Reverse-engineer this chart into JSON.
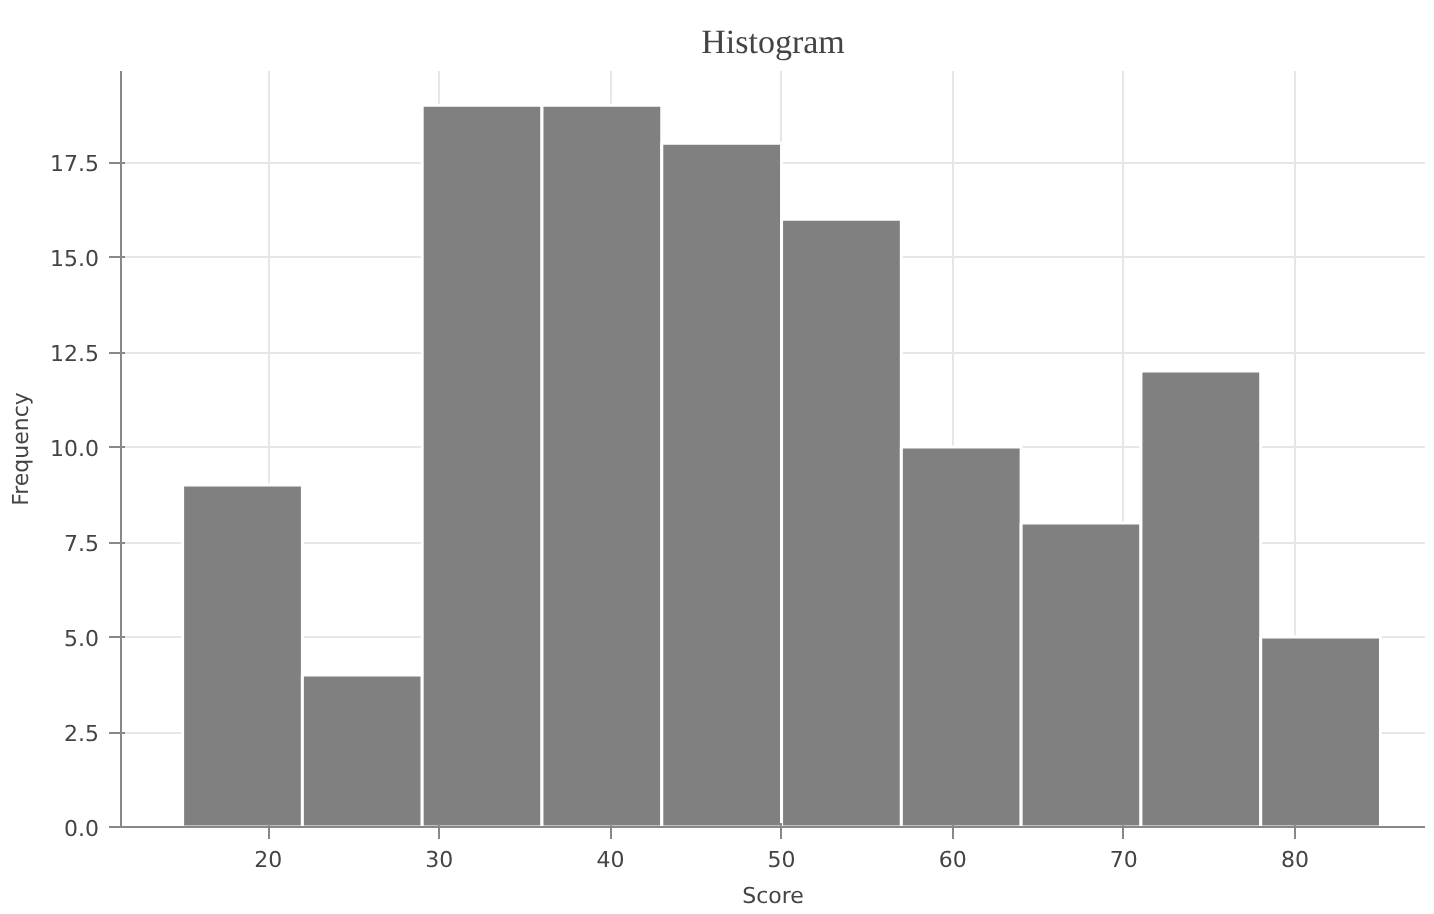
{
  "chart_data": {
    "type": "histogram",
    "title": "Histogram",
    "xlabel": "Score",
    "ylabel": "Frequency",
    "bins": [
      15,
      22,
      29,
      36,
      43,
      50,
      57,
      64,
      71,
      78,
      85
    ],
    "values": [
      9,
      4,
      19,
      19,
      18,
      16,
      10,
      8,
      12,
      5
    ],
    "color": "#808080",
    "xlim": [
      11.4,
      87.6
    ],
    "ylim": [
      0,
      19.9
    ],
    "xticks": [
      20,
      30,
      40,
      50,
      60,
      70,
      80
    ],
    "yticks": [
      {
        "value": 0,
        "label": "0.0"
      },
      {
        "value": 2.5,
        "label": "2.5"
      },
      {
        "value": 5,
        "label": "5.0"
      },
      {
        "value": 7.5,
        "label": "7.5"
      },
      {
        "value": 10,
        "label": "10.0"
      },
      {
        "value": 12.5,
        "label": "12.5"
      },
      {
        "value": 15,
        "label": "15.0"
      },
      {
        "value": 17.5,
        "label": "17.5"
      }
    ],
    "grid": true
  }
}
